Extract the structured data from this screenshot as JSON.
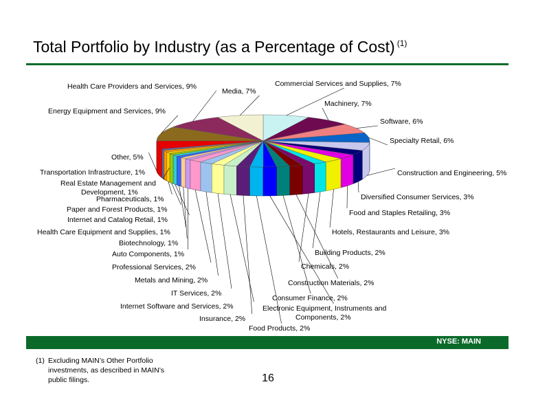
{
  "header": {
    "title": "Total Portfolio by Industry (as a Percentage of Cost)",
    "title_sup": "(1)"
  },
  "footer": {
    "ticker": "NYSE:  MAIN",
    "footnote_num": "(1)",
    "footnote_text": "Excluding MAIN’s Other Portfolio investments, as described in MAIN’s public filings.",
    "page_number": "16"
  },
  "colors": {
    "brand_green": "#0b6a2a"
  },
  "chart_data": {
    "type": "pie",
    "title": "Total Portfolio by Industry (as a Percentage of Cost)",
    "value_unit": "%",
    "slices": [
      {
        "label": "Commercial Services and Supplies, 7%",
        "value": 7,
        "color": "#c9f3f3"
      },
      {
        "label": "Machinery, 7%",
        "value": 7,
        "color": "#6e0b50"
      },
      {
        "label": "Software, 6%",
        "value": 6,
        "color": "#f08080"
      },
      {
        "label": "Specialty Retail, 6%",
        "value": 6,
        "color": "#0a64c8"
      },
      {
        "label": "Construction and Engineering, 5%",
        "value": 5,
        "color": "#c8c8ef"
      },
      {
        "label": "Diversified Consumer Services, 3%",
        "value": 3,
        "color": "#000078"
      },
      {
        "label": "Food and Staples Retailing, 3%",
        "value": 3,
        "color": "#e100e1"
      },
      {
        "label": "Hotels, Restaurants and Leisure, 3%",
        "value": 3,
        "color": "#f0f000"
      },
      {
        "label": "Building Products, 2%",
        "value": 2,
        "color": "#00e6e6"
      },
      {
        "label": "Chemicals, 2%",
        "value": 2,
        "color": "#7a0a6e"
      },
      {
        "label": "Construction Materials, 2%",
        "value": 2,
        "color": "#7a0000"
      },
      {
        "label": "Consumer Finance, 2%",
        "value": 2,
        "color": "#00807a"
      },
      {
        "label": "Electronic Equipment, Instruments and Components, 2%",
        "value": 2,
        "color": "#0000ff"
      },
      {
        "label": "Food Products, 2%",
        "value": 2,
        "color": "#00b4f0"
      },
      {
        "label": "Insurance, 2%",
        "value": 2,
        "color": "#5a1e78"
      },
      {
        "label": "Internet Software and Services, 2%",
        "value": 2,
        "color": "#c8f0c8"
      },
      {
        "label": "IT Services, 2%",
        "value": 2,
        "color": "#ffff99"
      },
      {
        "label": "Metals and Mining, 2%",
        "value": 2,
        "color": "#9cc3ef"
      },
      {
        "label": "Professional Services, 2%",
        "value": 2,
        "color": "#ff99cc"
      },
      {
        "label": "Auto Components, 1%",
        "value": 1,
        "color": "#c89bf0"
      },
      {
        "label": "Biotechnology, 1%",
        "value": 1,
        "color": "#ffcc99"
      },
      {
        "label": "Health Care Equipment and Supplies, 1%",
        "value": 1,
        "color": "#3366ff"
      },
      {
        "label": "Internet and Catalog Retail, 1%",
        "value": 1,
        "color": "#33cccc"
      },
      {
        "label": "Paper and Forest Products, 1%",
        "value": 1,
        "color": "#99cc00"
      },
      {
        "label": "Pharmaceuticals, 1%",
        "value": 1,
        "color": "#ffcc00"
      },
      {
        "label": "Real Estate Management and Development, 1%",
        "value": 1,
        "color": "#ff9900"
      },
      {
        "label": "Transportation Infrastructure, 1%",
        "value": 1,
        "color": "#666699"
      },
      {
        "label": "Other, 5%",
        "value": 5,
        "color": "#e60000"
      },
      {
        "label": "Energy Equipment and Services, 9%",
        "value": 9,
        "color": "#8b6a1e"
      },
      {
        "label": "Health Care Providers and Services, 9%",
        "value": 9,
        "color": "#8c2a5e"
      },
      {
        "label": "Media, 7%",
        "value": 7,
        "color": "#f2f2d2"
      }
    ]
  }
}
